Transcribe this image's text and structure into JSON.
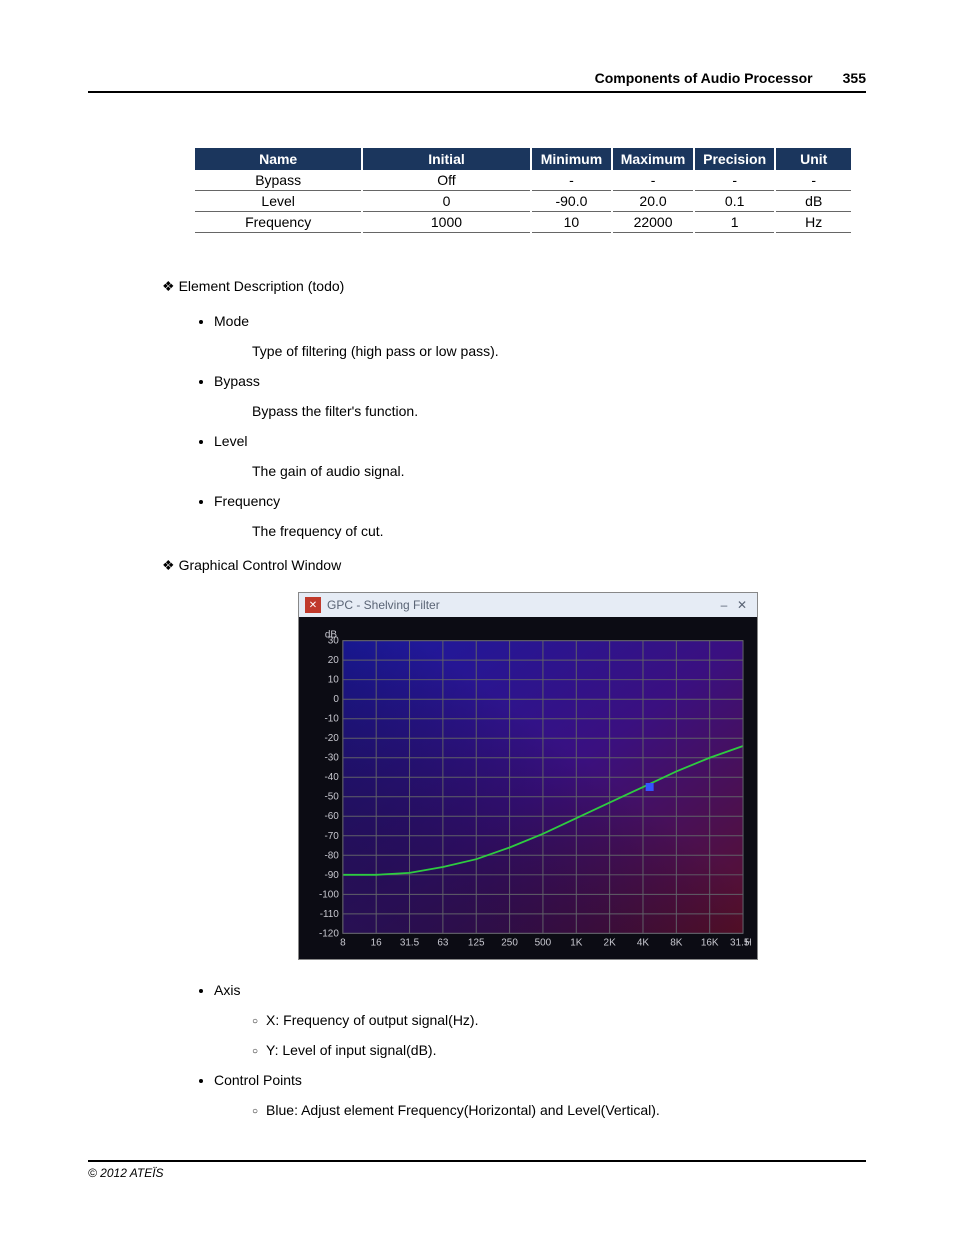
{
  "header": {
    "title": "Components of Audio Processor",
    "page": "355"
  },
  "table": {
    "columns": [
      "Name",
      "Initial",
      "Minimum",
      "Maximum",
      "Precision",
      "Unit"
    ],
    "rows": [
      [
        "Bypass",
        "Off",
        "-",
        "-",
        "-",
        "-"
      ],
      [
        "Level",
        "0",
        "-90.0",
        "20.0",
        "0.1",
        "dB"
      ],
      [
        "Frequency",
        "1000",
        "10",
        "22000",
        "1",
        "Hz"
      ]
    ],
    "header_bg": "#1b365d",
    "header_color": "#ffffff"
  },
  "sections": {
    "element_desc_heading": "Element Description (todo)",
    "element_items": [
      {
        "term": "Mode",
        "desc": "Type of filtering (high pass or low pass)."
      },
      {
        "term": "Bypass",
        "desc": "Bypass the filter's function."
      },
      {
        "term": "Level",
        "desc": "The gain of audio signal."
      },
      {
        "term": "Frequency",
        "desc": "The frequency of cut."
      }
    ],
    "gc_heading": "Graphical Control Window",
    "axis_heading": "Axis",
    "axis_items": [
      "X: Frequency of output signal(Hz).",
      "Y: Level of input signal(dB)."
    ],
    "cp_heading": "Control Points",
    "cp_items": [
      "Blue: Adjust element Frequency(Horizontal) and Level(Vertical)."
    ]
  },
  "chart": {
    "title": "GPC - Shelving Filter",
    "bg_dark": "#0c0c14",
    "grid_color": "#606068",
    "label_color": "#c8c8d0",
    "curve_color": "#2ecc40",
    "marker_color": "#3355ff",
    "gradient_top_left": "#1a1aa0",
    "gradient_top_right": "#3a1080",
    "gradient_bottom_left": "#201040",
    "gradient_bottom_right": "#5a1028",
    "y_label": "dB",
    "y_ticks": [
      30,
      20,
      10,
      0,
      -10,
      -20,
      -30,
      -40,
      -50,
      -60,
      -70,
      -80,
      -90,
      -100,
      -110,
      -120
    ],
    "y_lim": [
      -120,
      30
    ],
    "x_ticks": [
      "8",
      "16",
      "31.5",
      "63",
      "125",
      "250",
      "500",
      "1K",
      "2K",
      "4K",
      "8K",
      "16K",
      "31.5K"
    ],
    "x_label": "Hz",
    "curve_points": [
      {
        "xi": 0,
        "y": -90
      },
      {
        "xi": 1,
        "y": -90
      },
      {
        "xi": 2,
        "y": -89
      },
      {
        "xi": 3,
        "y": -86
      },
      {
        "xi": 4,
        "y": -82
      },
      {
        "xi": 5,
        "y": -76
      },
      {
        "xi": 6,
        "y": -69
      },
      {
        "xi": 7,
        "y": -61
      },
      {
        "xi": 8,
        "y": -53
      },
      {
        "xi": 9,
        "y": -45
      },
      {
        "xi": 10,
        "y": -37
      },
      {
        "xi": 11,
        "y": -30
      },
      {
        "xi": 12,
        "y": -24
      }
    ],
    "marker_point": {
      "xi": 9.2,
      "y": -45
    }
  },
  "footer": {
    "copyright": "© 2012 ATEÏS"
  }
}
